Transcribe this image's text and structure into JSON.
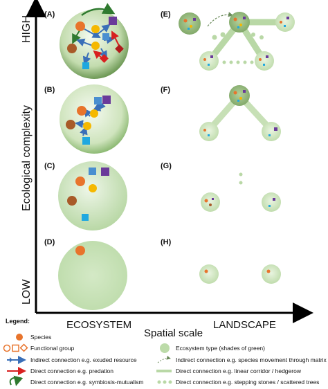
{
  "axes": {
    "y_label": "Ecological complexity",
    "y_high": "HIGH",
    "y_low": "LOW",
    "x_label": "Spatial scale",
    "x_left": "ECOSYSTEM",
    "x_right": "LANDSCAPE"
  },
  "panels": {
    "a": "(A)",
    "b": "(B)",
    "c": "(C)",
    "d": "(D)",
    "e": "(E)",
    "f": "(F)",
    "g": "(G)",
    "h": "(H)"
  },
  "legend": {
    "title": "Legend:",
    "species": "Species",
    "functional_group": "Functional group",
    "indirect": "Indirect connection e.g. exuded resource",
    "predation": "Direct connection e.g. predation",
    "mutualism": "Direct connection e.g. symbiosis-mutualism",
    "ecosystem_type": "Ecosystem type (shades of green)",
    "indirect_matrix": "Indirect connection e.g. species movement through matrix",
    "corridor": "Direct connection e.g. linear corridor / hedgerow",
    "stepping": "Direct connection e.g. stepping stones / scattered trees"
  },
  "colors": {
    "orange": "#e8742c",
    "dark_orange": "#a85a28",
    "yellow": "#f5b800",
    "blue": "#4a8fd0",
    "cyan": "#1fa8e0",
    "purple": "#6a3a9a",
    "red": "#d82020",
    "green_light": "#cfe6bf",
    "green_dark": "#7fae6a",
    "arrow_blue": "#3a6fb8"
  }
}
